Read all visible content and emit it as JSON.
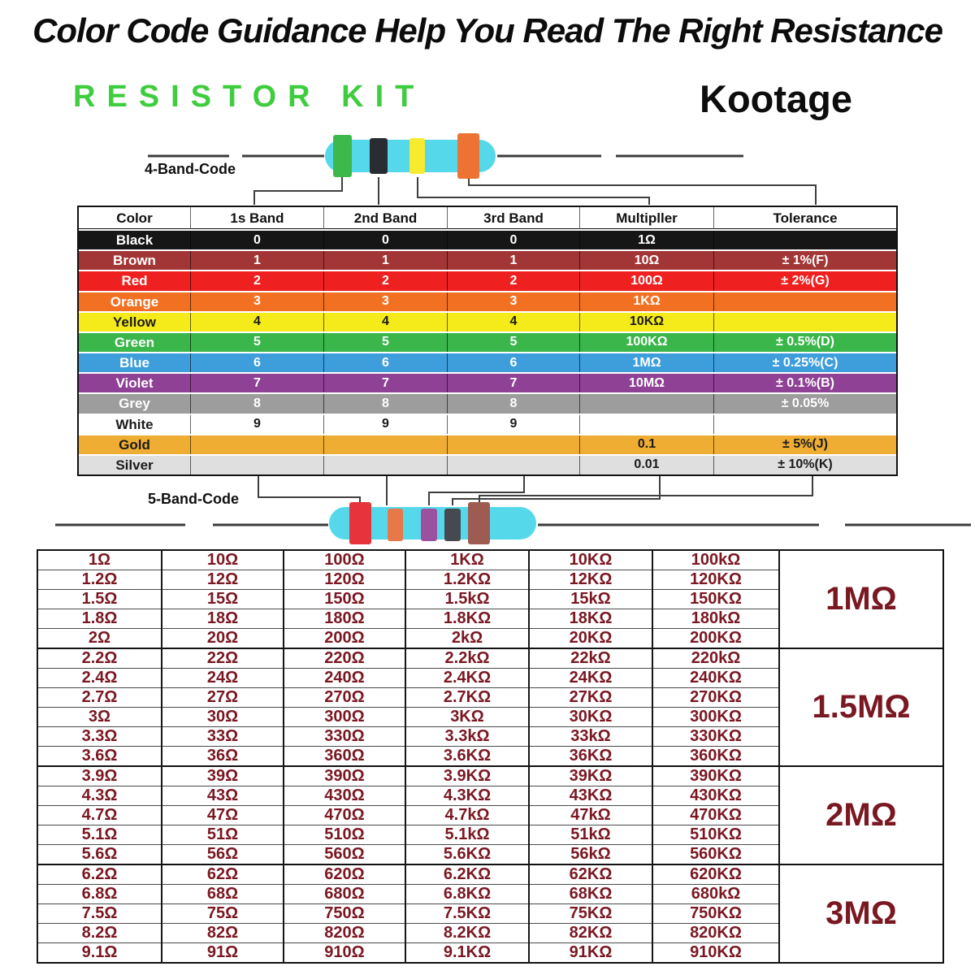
{
  "header": {
    "title": "Color Code Guidance Help You Read The Right Resistance",
    "kit_label": "RESISTOR KIT",
    "kit_color": "#3FCD3F",
    "brand": "Kootage"
  },
  "labels": {
    "band4": "4-Band-Code",
    "band5": "5-Band-Code"
  },
  "resistor_4band": {
    "body_color": "#55D9EA",
    "bands": [
      "green",
      "black",
      "yellow",
      "orange"
    ],
    "band_colors": [
      "#3CB94A",
      "#2A2C33",
      "#F6EB2E",
      "#EE7233"
    ]
  },
  "resistor_5band": {
    "body_color": "#55D9EA",
    "bands": [
      "red",
      "orange",
      "violet",
      "grey",
      "brown"
    ],
    "band_colors": [
      "#E6333C",
      "#E8784A",
      "#9C50A0",
      "#474951",
      "#9E5B51"
    ]
  },
  "color_table": {
    "headers": [
      "Color",
      "1s Band",
      "2nd Band",
      "3rd Band",
      "Multipller",
      "Tolerance"
    ],
    "rows": [
      {
        "name": "Black",
        "d1": "0",
        "d2": "0",
        "d3": "0",
        "multiplier": "1Ω",
        "tolerance": "",
        "bg": "#161616",
        "fg": "#ffffff"
      },
      {
        "name": "Brown",
        "d1": "1",
        "d2": "1",
        "d3": "1",
        "multiplier": "10Ω",
        "tolerance": "± 1%(F)",
        "bg": "#A23535",
        "fg": "#ffffff"
      },
      {
        "name": "Red",
        "d1": "2",
        "d2": "2",
        "d3": "2",
        "multiplier": "100Ω",
        "tolerance": "± 2%(G)",
        "bg": "#EE2020",
        "fg": "#ffffff"
      },
      {
        "name": "Orange",
        "d1": "3",
        "d2": "3",
        "d3": "3",
        "multiplier": "1KΩ",
        "tolerance": "",
        "bg": "#F17022",
        "fg": "#ffffff"
      },
      {
        "name": "Yellow",
        "d1": "4",
        "d2": "4",
        "d3": "4",
        "multiplier": "10KΩ",
        "tolerance": "",
        "bg": "#F6EB1A",
        "fg": "#1a1a1a"
      },
      {
        "name": "Green",
        "d1": "5",
        "d2": "5",
        "d3": "5",
        "multiplier": "100KΩ",
        "tolerance": "± 0.5%(D)",
        "bg": "#3BB64B",
        "fg": "#ffffff"
      },
      {
        "name": "Blue",
        "d1": "6",
        "d2": "6",
        "d3": "6",
        "multiplier": "1MΩ",
        "tolerance": "± 0.25%(C)",
        "bg": "#3E9EDC",
        "fg": "#ffffff"
      },
      {
        "name": "Violet",
        "d1": "7",
        "d2": "7",
        "d3": "7",
        "multiplier": "10MΩ",
        "tolerance": "± 0.1%(B)",
        "bg": "#8F4295",
        "fg": "#ffffff"
      },
      {
        "name": "Grey",
        "d1": "8",
        "d2": "8",
        "d3": "8",
        "multiplier": "",
        "tolerance": "± 0.05%",
        "bg": "#9D9D9D",
        "fg": "#ffffff"
      },
      {
        "name": "White",
        "d1": "9",
        "d2": "9",
        "d3": "9",
        "multiplier": "",
        "tolerance": "",
        "bg": "#FFFFFF",
        "fg": "#1a1a1a"
      },
      {
        "name": "Gold",
        "d1": "",
        "d2": "",
        "d3": "",
        "multiplier": "0.1",
        "tolerance": "± 5%(J)",
        "bg": "#EFAE33",
        "fg": "#1a1a1a"
      },
      {
        "name": "Silver",
        "d1": "",
        "d2": "",
        "d3": "",
        "multiplier": "0.01",
        "tolerance": "± 10%(K)",
        "bg": "#DFDFDF",
        "fg": "#1a1a1a"
      }
    ]
  },
  "values_table": {
    "text_color": "#7A1822",
    "groups": [
      {
        "group_value": "1MΩ",
        "rows": [
          [
            "1Ω",
            "10Ω",
            "100Ω",
            "1KΩ",
            "10KΩ",
            "100kΩ"
          ],
          [
            "1.2Ω",
            "12Ω",
            "120Ω",
            "1.2KΩ",
            "12KΩ",
            "120KΩ"
          ],
          [
            "1.5Ω",
            "15Ω",
            "150Ω",
            "1.5kΩ",
            "15kΩ",
            "150KΩ"
          ],
          [
            "1.8Ω",
            "18Ω",
            "180Ω",
            "1.8KΩ",
            "18KΩ",
            "180kΩ"
          ],
          [
            "2Ω",
            "20Ω",
            "200Ω",
            "2kΩ",
            "20KΩ",
            "200KΩ"
          ]
        ]
      },
      {
        "group_value": "1.5MΩ",
        "rows": [
          [
            "2.2Ω",
            "22Ω",
            "220Ω",
            "2.2kΩ",
            "22kΩ",
            "220kΩ"
          ],
          [
            "2.4Ω",
            "24Ω",
            "240Ω",
            "2.4KΩ",
            "24KΩ",
            "240KΩ"
          ],
          [
            "2.7Ω",
            "27Ω",
            "270Ω",
            "2.7KΩ",
            "27KΩ",
            "270KΩ"
          ],
          [
            "3Ω",
            "30Ω",
            "300Ω",
            "3KΩ",
            "30KΩ",
            "300KΩ"
          ],
          [
            "3.3Ω",
            "33Ω",
            "330Ω",
            "3.3kΩ",
            "33kΩ",
            "330KΩ"
          ],
          [
            "3.6Ω",
            "36Ω",
            "360Ω",
            "3.6KΩ",
            "36KΩ",
            "360KΩ"
          ]
        ]
      },
      {
        "group_value": "2MΩ",
        "rows": [
          [
            "3.9Ω",
            "39Ω",
            "390Ω",
            "3.9KΩ",
            "39KΩ",
            "390KΩ"
          ],
          [
            "4.3Ω",
            "43Ω",
            "430Ω",
            "4.3KΩ",
            "43KΩ",
            "430KΩ"
          ],
          [
            "4.7Ω",
            "47Ω",
            "470Ω",
            "4.7kΩ",
            "47kΩ",
            "470KΩ"
          ],
          [
            "5.1Ω",
            "51Ω",
            "510Ω",
            "5.1kΩ",
            "51kΩ",
            "510KΩ"
          ],
          [
            "5.6Ω",
            "56Ω",
            "560Ω",
            "5.6KΩ",
            "56kΩ",
            "560KΩ"
          ]
        ]
      },
      {
        "group_value": "3MΩ",
        "rows": [
          [
            "6.2Ω",
            "62Ω",
            "620Ω",
            "6.2KΩ",
            "62KΩ",
            "620KΩ"
          ],
          [
            "6.8Ω",
            "68Ω",
            "680Ω",
            "6.8KΩ",
            "68KΩ",
            "680kΩ"
          ],
          [
            "7.5Ω",
            "75Ω",
            "750Ω",
            "7.5KΩ",
            "75KΩ",
            "750KΩ"
          ],
          [
            "8.2Ω",
            "82Ω",
            "820Ω",
            "8.2KΩ",
            "82KΩ",
            "820KΩ"
          ],
          [
            "9.1Ω",
            "91Ω",
            "910Ω",
            "9.1KΩ",
            "91KΩ",
            "910KΩ"
          ]
        ]
      }
    ]
  }
}
